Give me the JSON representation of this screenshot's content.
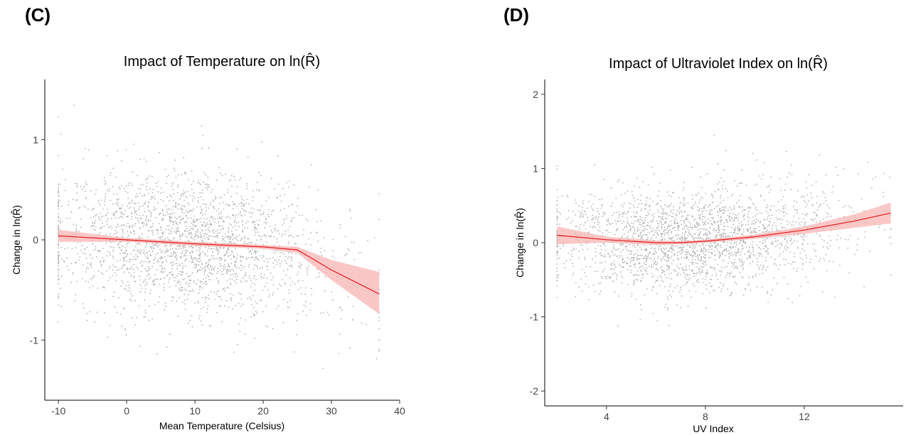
{
  "panels": [
    {
      "label": "(C)"
    },
    {
      "label": "(D)"
    }
  ],
  "chart_data": [
    {
      "type": "scatter",
      "title": "Impact of Temperature on ln(R̂)",
      "xlabel": "Mean Temperature (Celsius)",
      "ylabel": "Change in ln(R̂)",
      "xlim": [
        -12,
        40
      ],
      "ylim": [
        -1.6,
        1.6
      ],
      "xticks": [
        -10,
        0,
        10,
        20,
        30,
        40
      ],
      "xtick_labels": [
        "-10",
        "0",
        "10",
        "20",
        "30",
        "40"
      ],
      "yticks": [
        -1,
        0,
        1
      ],
      "ytick_labels": [
        "-1",
        "0",
        "1"
      ],
      "grid": false,
      "point_color": "#b3b3b3",
      "fit_color": "#e41a1c",
      "band_color": "#f8b4b4",
      "fit_line": {
        "x": [
          -10,
          0,
          10,
          20,
          25,
          30,
          37
        ],
        "y": [
          0.04,
          0.0,
          -0.04,
          -0.07,
          -0.1,
          -0.3,
          -0.54
        ],
        "lower": [
          -0.02,
          -0.02,
          -0.06,
          -0.09,
          -0.13,
          -0.4,
          -0.74
        ],
        "upper": [
          0.1,
          0.02,
          -0.02,
          -0.05,
          -0.07,
          -0.2,
          -0.32
        ]
      },
      "scatter_summary": {
        "x_range": [
          -10,
          37
        ],
        "y_center": 0,
        "y_spread": 0.35,
        "n": 2400
      }
    },
    {
      "type": "scatter",
      "title": "Impact of Ultraviolet Index on ln(R̂)",
      "xlabel": "UV Index",
      "ylabel": "Change in ln(R̂)",
      "xlim": [
        1.5,
        16
      ],
      "ylim": [
        -2.2,
        2.2
      ],
      "xticks": [
        4,
        8,
        12
      ],
      "xtick_labels": [
        "4",
        "8",
        "12"
      ],
      "yticks": [
        -2,
        -1,
        0,
        1,
        2
      ],
      "ytick_labels": [
        "-2",
        "-1",
        "0",
        "1",
        "2"
      ],
      "grid": false,
      "point_color": "#b3b3b3",
      "fit_color": "#e41a1c",
      "band_color": "#f8b4b4",
      "fit_line": {
        "x": [
          2,
          4,
          6,
          7,
          8,
          10,
          12,
          14,
          15.5
        ],
        "y": [
          0.1,
          0.04,
          0.0,
          0.0,
          0.02,
          0.08,
          0.17,
          0.29,
          0.4
        ],
        "lower": [
          -0.02,
          0.0,
          -0.03,
          -0.02,
          0.0,
          0.05,
          0.12,
          0.2,
          0.26
        ],
        "upper": [
          0.22,
          0.08,
          0.03,
          0.02,
          0.04,
          0.11,
          0.22,
          0.38,
          0.54
        ]
      },
      "scatter_summary": {
        "x_range": [
          2,
          15.5
        ],
        "y_center": 0,
        "y_spread": 0.35,
        "n": 2400
      }
    }
  ]
}
